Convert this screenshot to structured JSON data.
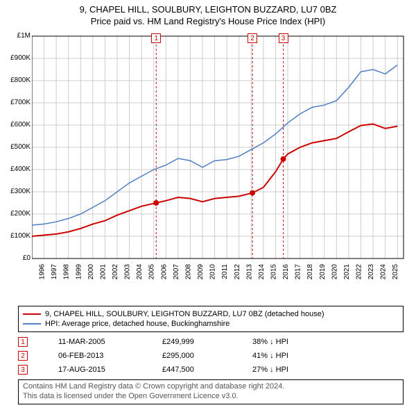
{
  "title": {
    "line1": "9, CHAPEL HILL, SOULBURY, LEIGHTON BUZZARD, LU7 0BZ",
    "line2": "Price paid vs. HM Land Registry's House Price Index (HPI)"
  },
  "chart": {
    "type": "line",
    "background_color": "#ffffff",
    "grid_color": "#cccccc",
    "axis_color": "#000000",
    "xmin": 1995,
    "xmax": 2025.5,
    "ymin": 0,
    "ymax": 1000000,
    "ytick_step": 100000,
    "yticks": [
      "£0",
      "£100K",
      "£200K",
      "£300K",
      "£400K",
      "£500K",
      "£600K",
      "£700K",
      "£800K",
      "£900K",
      "£1M"
    ],
    "xticks": [
      1995,
      1996,
      1997,
      1998,
      1999,
      2000,
      2001,
      2002,
      2003,
      2004,
      2005,
      2006,
      2007,
      2008,
      2009,
      2010,
      2011,
      2012,
      2013,
      2014,
      2015,
      2016,
      2017,
      2018,
      2019,
      2020,
      2021,
      2022,
      2023,
      2024,
      2025
    ],
    "series": [
      {
        "name": "property",
        "color": "#cc0000",
        "width": 2,
        "label": "9, CHAPEL HILL, SOULBURY, LEIGHTON BUZZARD, LU7 0BZ (detached house)",
        "points": [
          [
            1995,
            100000
          ],
          [
            1996,
            105000
          ],
          [
            1997,
            110000
          ],
          [
            1998,
            120000
          ],
          [
            1999,
            135000
          ],
          [
            2000,
            155000
          ],
          [
            2001,
            170000
          ],
          [
            2002,
            195000
          ],
          [
            2003,
            215000
          ],
          [
            2004,
            235000
          ],
          [
            2005.2,
            249999
          ],
          [
            2006,
            260000
          ],
          [
            2007,
            275000
          ],
          [
            2008,
            270000
          ],
          [
            2009,
            255000
          ],
          [
            2010,
            270000
          ],
          [
            2011,
            275000
          ],
          [
            2012,
            280000
          ],
          [
            2013.1,
            295000
          ],
          [
            2014,
            320000
          ],
          [
            2015,
            390000
          ],
          [
            2015.63,
            447500
          ],
          [
            2016,
            470000
          ],
          [
            2017,
            500000
          ],
          [
            2018,
            520000
          ],
          [
            2019,
            530000
          ],
          [
            2020,
            540000
          ],
          [
            2021,
            570000
          ],
          [
            2022,
            598000
          ],
          [
            2023,
            605000
          ],
          [
            2024,
            585000
          ],
          [
            2025,
            595000
          ]
        ]
      },
      {
        "name": "hpi",
        "color": "#4d7dc4",
        "width": 1.5,
        "label": "HPI: Average price, detached house, Buckinghamshire",
        "points": [
          [
            1995,
            150000
          ],
          [
            1996,
            155000
          ],
          [
            1997,
            165000
          ],
          [
            1998,
            180000
          ],
          [
            1999,
            200000
          ],
          [
            2000,
            230000
          ],
          [
            2001,
            260000
          ],
          [
            2002,
            300000
          ],
          [
            2003,
            340000
          ],
          [
            2004,
            370000
          ],
          [
            2005,
            400000
          ],
          [
            2006,
            420000
          ],
          [
            2007,
            450000
          ],
          [
            2008,
            440000
          ],
          [
            2009,
            410000
          ],
          [
            2010,
            440000
          ],
          [
            2011,
            445000
          ],
          [
            2012,
            460000
          ],
          [
            2013,
            490000
          ],
          [
            2014,
            520000
          ],
          [
            2015,
            560000
          ],
          [
            2016,
            610000
          ],
          [
            2017,
            650000
          ],
          [
            2018,
            680000
          ],
          [
            2019,
            690000
          ],
          [
            2020,
            710000
          ],
          [
            2021,
            770000
          ],
          [
            2022,
            840000
          ],
          [
            2023,
            850000
          ],
          [
            2024,
            830000
          ],
          [
            2025,
            870000
          ]
        ]
      }
    ],
    "sale_markers": [
      {
        "n": 1,
        "year": 2005.2,
        "price": 249999,
        "color": "#cc0000"
      },
      {
        "n": 2,
        "year": 2013.1,
        "price": 295000,
        "color": "#cc0000"
      },
      {
        "n": 3,
        "year": 2015.63,
        "price": 447500,
        "color": "#cc0000"
      }
    ],
    "sale_vline_dash": "3,3"
  },
  "sales": [
    {
      "n": 1,
      "date": "11-MAR-2005",
      "price": "£249,999",
      "pct": "38% ↓ HPI",
      "marker_color": "#cc0000"
    },
    {
      "n": 2,
      "date": "06-FEB-2013",
      "price": "£295,000",
      "pct": "41% ↓ HPI",
      "marker_color": "#cc0000"
    },
    {
      "n": 3,
      "date": "17-AUG-2015",
      "price": "£447,500",
      "pct": "27% ↓ HPI",
      "marker_color": "#cc0000"
    }
  ],
  "footer": {
    "line1": "Contains HM Land Registry data © Crown copyright and database right 2024.",
    "line2": "This data is licensed under the Open Government Licence v3.0."
  }
}
